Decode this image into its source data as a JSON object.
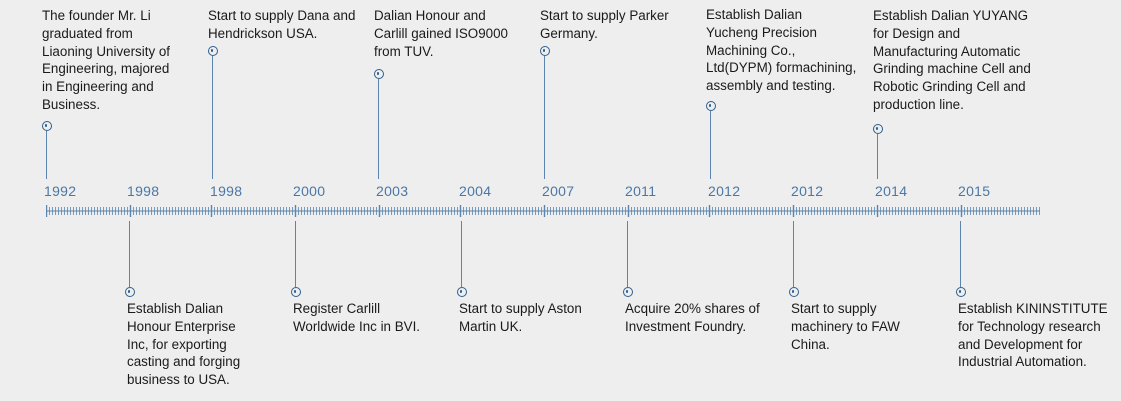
{
  "colors": {
    "background": "#eeeeee",
    "axis": "#5b84ae",
    "year_text": "#4a78a6",
    "body_text": "#1a1a1a",
    "marker": "#2f5f8f"
  },
  "icons": {
    "marker": "circle-dot-icon"
  },
  "events": [
    {
      "year": "1992",
      "position": "above",
      "lines": [
        "The founder Mr. Li",
        "graduated from",
        "Liaoning University of",
        "Engineering, majored",
        "in Engineering and",
        "Business."
      ]
    },
    {
      "year": "1998",
      "position": "below",
      "lines": [
        "Establish Dalian",
        "Honour Enterprise",
        "Inc, for exporting",
        "casting and forging",
        "business to USA."
      ]
    },
    {
      "year": "1998",
      "position": "above",
      "lines": [
        "Start to supply Dana and",
        "Hendrickson USA."
      ]
    },
    {
      "year": "2000",
      "position": "below",
      "lines": [
        "Register Carlill",
        "Worldwide Inc in BVI."
      ]
    },
    {
      "year": "2003",
      "position": "above",
      "lines": [
        "Dalian Honour and",
        "Carlill gained ISO9000",
        "from TUV."
      ]
    },
    {
      "year": "2004",
      "position": "below",
      "lines": [
        "Start to supply Aston",
        "Martin UK."
      ]
    },
    {
      "year": "2007",
      "position": "above",
      "lines": [
        "Start to supply Parker",
        "Germany."
      ]
    },
    {
      "year": "2011",
      "position": "below",
      "lines": [
        "Acquire 20% shares of",
        "Investment Foundry."
      ]
    },
    {
      "year": "2012",
      "position": "above",
      "lines": [
        "Establish Dalian",
        "Yucheng Precision",
        "Machining Co.,",
        "Ltd(DYPM) formachining,",
        "assembly and testing."
      ]
    },
    {
      "year": "2012",
      "position": "below",
      "lines": [
        "Start to supply",
        "machinery to FAW",
        "China."
      ]
    },
    {
      "year": "2014",
      "position": "above",
      "lines": [
        "Establish Dalian YUYANG",
        "for Design and",
        "Manufacturing Automatic",
        "Grinding machine Cell and",
        "Robotic Grinding Cell and",
        "production line."
      ]
    },
    {
      "year": "2015",
      "position": "below",
      "lines": [
        "Establish KININSTITUTE",
        "for Technology research",
        "and Development for",
        "Industrial Automation."
      ]
    }
  ]
}
